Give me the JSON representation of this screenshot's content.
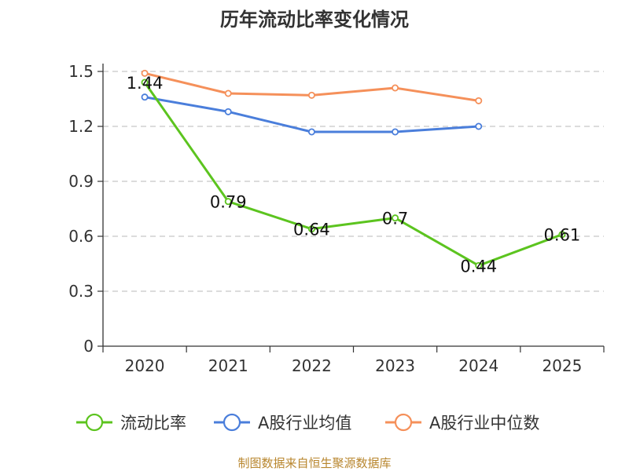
{
  "chart_data": {
    "type": "line",
    "title": "历年流动比率变化情况",
    "categories": [
      "2020",
      "2021",
      "2022",
      "2023",
      "2024",
      "2025"
    ],
    "yticks": [
      "0",
      "0.3",
      "0.6",
      "0.9",
      "1.2",
      "1.5"
    ],
    "ylim": [
      0,
      1.5
    ],
    "grid": true,
    "legend_position": "bottom",
    "series": [
      {
        "name": "流动比率",
        "color": "#5cc41f",
        "values": [
          1.44,
          0.79,
          0.64,
          0.7,
          0.44,
          0.61
        ],
        "labels": [
          "1.44",
          "0.79",
          "0.64",
          "0.7",
          "0.44",
          "0.61"
        ]
      },
      {
        "name": "A股行业均值",
        "color": "#4a7edb",
        "values": [
          1.36,
          1.28,
          1.17,
          1.17,
          1.2,
          null
        ]
      },
      {
        "name": "A股行业中位数",
        "color": "#f5905a",
        "values": [
          1.49,
          1.38,
          1.37,
          1.41,
          1.34,
          null
        ]
      }
    ],
    "source": "制图数据来自恒生聚源数据库"
  }
}
